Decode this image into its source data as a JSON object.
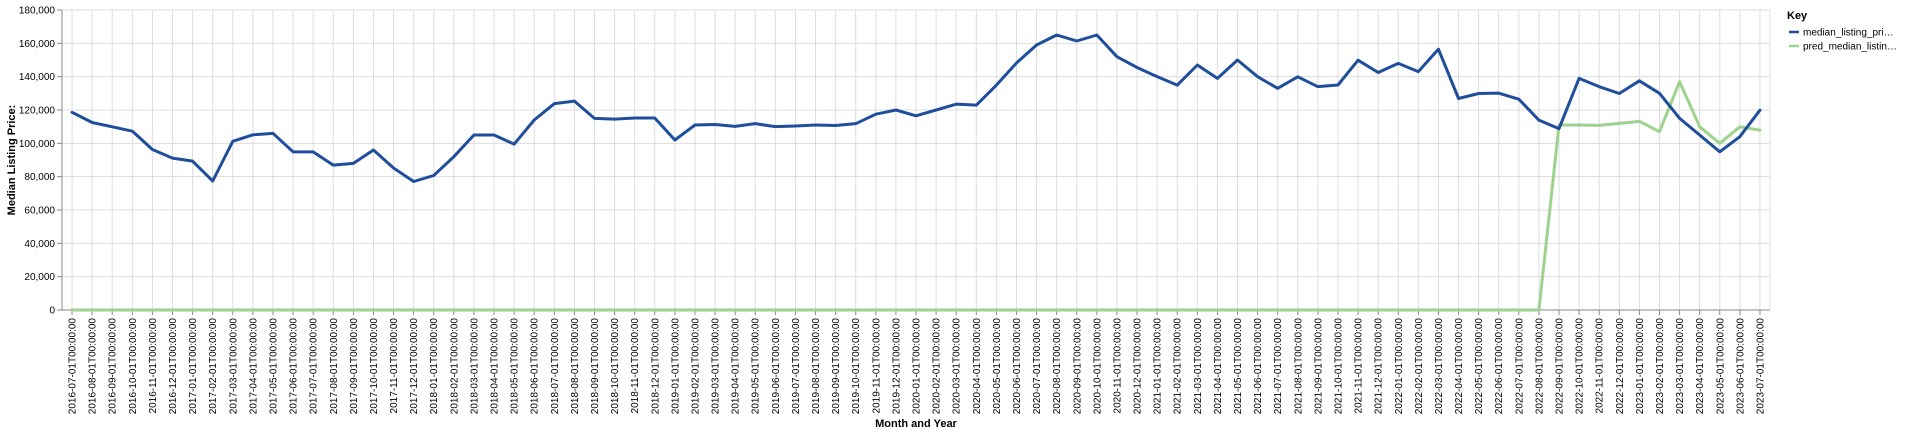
{
  "chart_data": {
    "type": "line",
    "xlabel": "Month and Year",
    "ylabel": "Median Listing Price:",
    "ylim": [
      0,
      180000
    ],
    "yticks": [
      "0",
      "20,000",
      "40,000",
      "60,000",
      "80,000",
      "100,000",
      "120,000",
      "140,000",
      "160,000",
      "180,000"
    ],
    "grid": true,
    "legend": {
      "title": "Key",
      "placement": "top-right"
    },
    "x": [
      "2016-07-01T00:00:00",
      "2016-08-01T00:00:00",
      "2016-09-01T00:00:00",
      "2016-10-01T00:00:00",
      "2016-11-01T00:00:00",
      "2016-12-01T00:00:00",
      "2017-01-01T00:00:00",
      "2017-02-01T00:00:00",
      "2017-03-01T00:00:00",
      "2017-04-01T00:00:00",
      "2017-05-01T00:00:00",
      "2017-06-01T00:00:00",
      "2017-07-01T00:00:00",
      "2017-08-01T00:00:00",
      "2017-09-01T00:00:00",
      "2017-10-01T00:00:00",
      "2017-11-01T00:00:00",
      "2017-12-01T00:00:00",
      "2018-01-01T00:00:00",
      "2018-02-01T00:00:00",
      "2018-03-01T00:00:00",
      "2018-04-01T00:00:00",
      "2018-05-01T00:00:00",
      "2018-06-01T00:00:00",
      "2018-07-01T00:00:00",
      "2018-08-01T00:00:00",
      "2018-09-01T00:00:00",
      "2018-10-01T00:00:00",
      "2018-11-01T00:00:00",
      "2018-12-01T00:00:00",
      "2019-01-01T00:00:00",
      "2019-02-01T00:00:00",
      "2019-03-01T00:00:00",
      "2019-04-01T00:00:00",
      "2019-05-01T00:00:00",
      "2019-06-01T00:00:00",
      "2019-07-01T00:00:00",
      "2019-08-01T00:00:00",
      "2019-09-01T00:00:00",
      "2019-10-01T00:00:00",
      "2019-11-01T00:00:00",
      "2019-12-01T00:00:00",
      "2020-01-01T00:00:00",
      "2020-02-01T00:00:00",
      "2020-03-01T00:00:00",
      "2020-04-01T00:00:00",
      "2020-05-01T00:00:00",
      "2020-06-01T00:00:00",
      "2020-07-01T00:00:00",
      "2020-08-01T00:00:00",
      "2020-09-01T00:00:00",
      "2020-10-01T00:00:00",
      "2020-11-01T00:00:00",
      "2020-12-01T00:00:00",
      "2021-01-01T00:00:00",
      "2021-02-01T00:00:00",
      "2021-03-01T00:00:00",
      "2021-04-01T00:00:00",
      "2021-05-01T00:00:00",
      "2021-06-01T00:00:00",
      "2021-07-01T00:00:00",
      "2021-08-01T00:00:00",
      "2021-09-01T00:00:00",
      "2021-10-01T00:00:00",
      "2021-11-01T00:00:00",
      "2021-12-01T00:00:00",
      "2022-01-01T00:00:00",
      "2022-02-01T00:00:00",
      "2022-03-01T00:00:00",
      "2022-04-01T00:00:00",
      "2022-05-01T00:00:00",
      "2022-06-01T00:00:00",
      "2022-07-01T00:00:00",
      "2022-08-01T00:00:00",
      "2022-09-01T00:00:00",
      "2022-10-01T00:00:00",
      "2022-11-01T00:00:00",
      "2022-12-01T00:00:00",
      "2023-01-01T00:00:00",
      "2023-02-01T00:00:00",
      "2023-03-01T00:00:00",
      "2023-04-01T00:00:00",
      "2023-05-01T00:00:00",
      "2023-06-01T00:00:00",
      "2023-07-01T00:00:00"
    ],
    "series": [
      {
        "name": "median_listing_pri…",
        "color": "#1f4e9c",
        "values": [
          118600,
          112500,
          109900,
          107300,
          96300,
          91100,
          89300,
          77400,
          101200,
          105100,
          106000,
          94900,
          94900,
          86900,
          88000,
          96000,
          85200,
          77100,
          80700,
          92000,
          105000,
          105000,
          99500,
          114000,
          123800,
          125300,
          115000,
          114500,
          115200,
          115200,
          102000,
          111000,
          111300,
          110200,
          111800,
          110000,
          110400,
          111000,
          110700,
          111800,
          117500,
          120000,
          116500,
          120000,
          123500,
          122900,
          134900,
          148200,
          159000,
          165000,
          161400,
          165000,
          152000,
          145500,
          140000,
          134900,
          147000,
          139000,
          150000,
          140000,
          133000,
          139900,
          134000,
          135000,
          149900,
          142500,
          148000,
          143000,
          156500,
          126900,
          129900,
          130100,
          126500,
          113900,
          108800,
          139000,
          134000,
          129900,
          137500,
          130000,
          115000,
          105000,
          94900,
          104000,
          119900
        ]
      },
      {
        "name": "pred_median_listin…",
        "color": "#9ed28f",
        "values": [
          0,
          0,
          0,
          0,
          0,
          0,
          0,
          0,
          0,
          0,
          0,
          0,
          0,
          0,
          0,
          0,
          0,
          0,
          0,
          0,
          0,
          0,
          0,
          0,
          0,
          0,
          0,
          0,
          0,
          0,
          0,
          0,
          0,
          0,
          0,
          0,
          0,
          0,
          0,
          0,
          0,
          0,
          0,
          0,
          0,
          0,
          0,
          0,
          0,
          0,
          0,
          0,
          0,
          0,
          0,
          0,
          0,
          0,
          0,
          0,
          0,
          0,
          0,
          0,
          0,
          0,
          0,
          0,
          0,
          0,
          0,
          0,
          0,
          0,
          111000,
          111000,
          110800,
          112000,
          113200,
          107000,
          137000,
          110000,
          100000,
          109900,
          107900
        ]
      }
    ]
  }
}
